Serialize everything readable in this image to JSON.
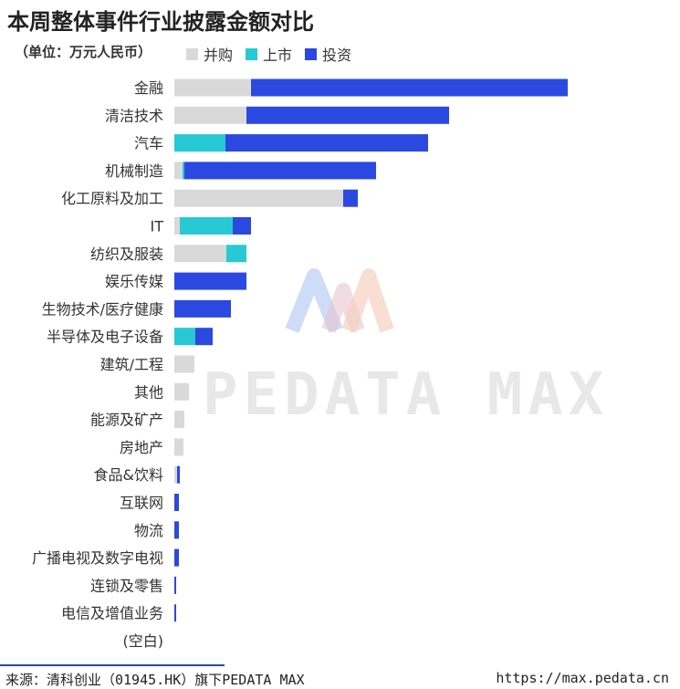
{
  "header": {
    "title": "本周整体事件行业披露金额对比",
    "unit": "（单位：万元人民币）"
  },
  "legend": [
    {
      "label": "并购",
      "color": "#d9d9d9"
    },
    {
      "label": "上市",
      "color": "#26c9d4"
    },
    {
      "label": "投资",
      "color": "#2b49e0"
    }
  ],
  "watermark": "PEDATA MAX",
  "footer": {
    "source": "来源：清科创业（01945.HK）旗下PEDATA MAX",
    "url": "https://max.pedata.cn"
  },
  "chart_data": {
    "type": "bar",
    "orientation": "horizontal",
    "stacked": true,
    "categories": [
      "金融",
      "清洁技术",
      "汽车",
      "机械制造",
      "化工原料及加工",
      "IT",
      "纺织及服装",
      "娱乐传媒",
      "生物技术/医疗健康",
      "半导体及电子设备",
      "建筑/工程",
      "其他",
      "能源及矿产",
      "房地产",
      "食品&饮料",
      "互联网",
      "物流",
      "广播电视及数字电视",
      "连锁及零售",
      "电信及增值业务",
      "(空白)"
    ],
    "series": [
      {
        "name": "并购",
        "values": [
          84,
          79,
          0,
          9,
          185,
          6,
          57,
          0,
          0,
          0,
          22,
          16,
          11,
          10,
          3,
          0,
          0,
          0,
          0,
          0,
          0
        ]
      },
      {
        "name": "上市",
        "values": [
          0,
          0,
          56,
          2,
          0,
          58,
          22,
          0,
          0,
          23,
          0,
          0,
          0,
          0,
          0,
          0,
          0,
          0,
          0,
          0,
          0
        ]
      },
      {
        "name": "投资",
        "values": [
          347,
          222,
          222,
          210,
          16,
          20,
          0,
          79,
          62,
          19,
          0,
          0,
          0,
          0,
          3,
          5,
          5,
          5,
          2,
          2,
          0
        ]
      }
    ],
    "xlim": [
      0,
      440
    ],
    "axis_labels_visible": false,
    "grid": false,
    "legend_position": "top"
  }
}
